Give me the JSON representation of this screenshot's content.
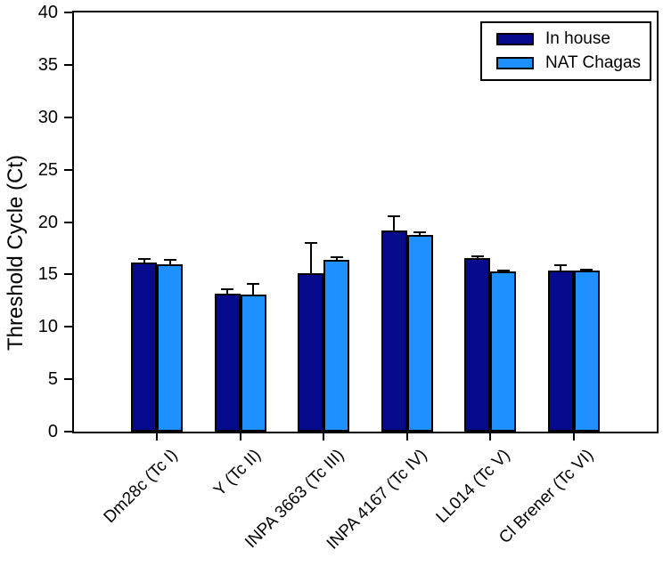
{
  "chart_data": {
    "type": "bar",
    "title": "",
    "categories": [
      "Dm28c (Tc I)",
      "Y (Tc II)",
      "INPA 3663 (Tc III)",
      "INPA 4167 (Tc IV)",
      "LL014 (Tc V)",
      "Cl Brener (Tc VI)"
    ],
    "series": [
      {
        "name": "In house",
        "color": "#060A8C",
        "values": [
          16.1,
          13.2,
          15.1,
          19.2,
          16.6,
          15.4
        ],
        "errors_plus": [
          0.5,
          0.5,
          3.0,
          1.4,
          0.2,
          0.6
        ]
      },
      {
        "name": "NAT Chagas",
        "color": "#1E90FF",
        "values": [
          16.0,
          13.1,
          16.4,
          18.8,
          15.3,
          15.4
        ],
        "errors_plus": [
          0.45,
          1.1,
          0.3,
          0.35,
          0.15,
          0.1
        ]
      }
    ],
    "xlabel": "",
    "ylabel": "Threshold Cycle (Ct)",
    "ylim": [
      0,
      40
    ],
    "yticks": [
      0,
      5,
      10,
      15,
      20,
      25,
      30,
      35,
      40
    ],
    "grid": false,
    "legend_position": "top-right",
    "bar_outline_color": "#000000",
    "error_bar_color": "#000000",
    "background": "#FFFFFF"
  }
}
